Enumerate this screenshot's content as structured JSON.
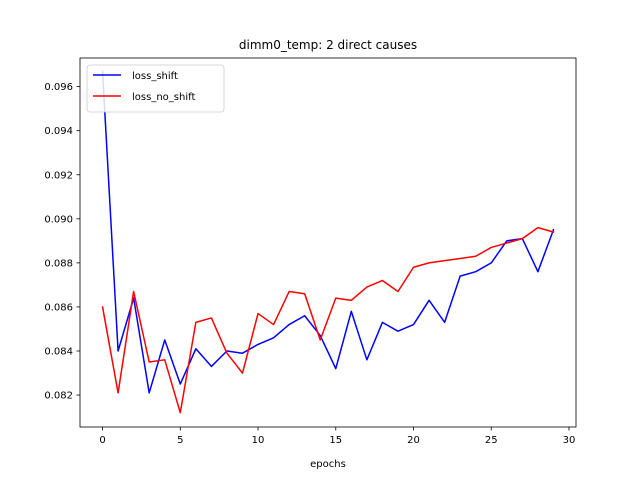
{
  "chart_data": {
    "type": "line",
    "title": "dimm0_temp: 2 direct causes",
    "xlabel": "epochs",
    "ylabel": "",
    "xlim": [
      -1.45,
      30.45
    ],
    "ylim": [
      0.08055,
      0.0973
    ],
    "xticks": [
      0,
      5,
      10,
      15,
      20,
      25,
      30
    ],
    "yticks": [
      0.082,
      0.084,
      0.086,
      0.088,
      0.09,
      0.092,
      0.094,
      0.096
    ],
    "ytick_labels": [
      "0.082",
      "0.084",
      "0.086",
      "0.088",
      "0.090",
      "0.092",
      "0.094",
      "0.096"
    ],
    "grid": false,
    "legend_position": "top-left",
    "x": [
      0,
      1,
      2,
      3,
      4,
      5,
      6,
      7,
      8,
      9,
      10,
      11,
      12,
      13,
      14,
      15,
      16,
      17,
      18,
      19,
      20,
      21,
      22,
      23,
      24,
      25,
      26,
      27,
      28,
      29
    ],
    "series": [
      {
        "name": "loss_shift",
        "color": "#0000ff",
        "values": [
          0.0967,
          0.084,
          0.0864,
          0.0821,
          0.0845,
          0.0825,
          0.0841,
          0.0833,
          0.084,
          0.0839,
          0.0843,
          0.0846,
          0.0852,
          0.0856,
          0.0847,
          0.0832,
          0.0858,
          0.0836,
          0.0853,
          0.0849,
          0.0852,
          0.0863,
          0.0853,
          0.0874,
          0.0876,
          0.088,
          0.089,
          0.0891,
          0.0876,
          0.0895
        ]
      },
      {
        "name": "loss_no_shift",
        "color": "#ff0000",
        "values": [
          0.086,
          0.0821,
          0.0867,
          0.0835,
          0.0836,
          0.0812,
          0.0853,
          0.0855,
          0.0839,
          0.083,
          0.0857,
          0.0852,
          0.0867,
          0.0866,
          0.0845,
          0.0864,
          0.0863,
          0.0869,
          0.0872,
          0.0867,
          0.0878,
          0.088,
          0.0881,
          0.0882,
          0.0883,
          0.0887,
          0.0889,
          0.0891,
          0.0896,
          0.0894
        ]
      }
    ]
  }
}
